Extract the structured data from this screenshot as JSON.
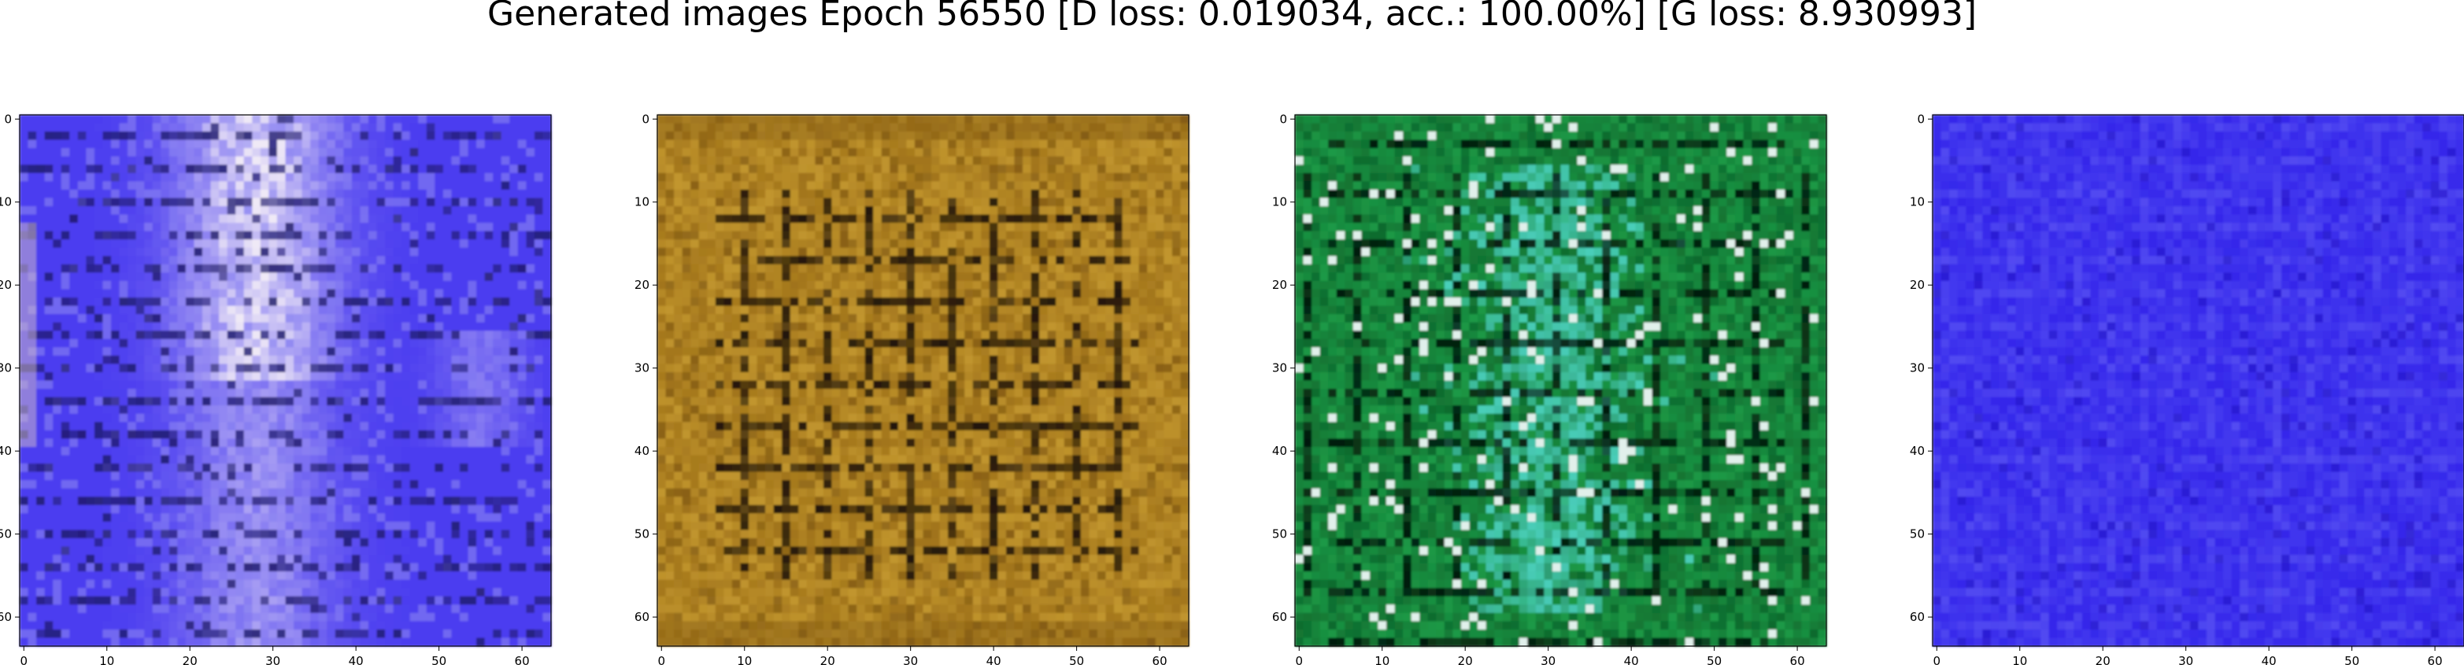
{
  "title": "Generated images Epoch 56550 [D loss: 0.019034, acc.: 100.00%] [G loss: 8.930993]",
  "chart_data": [
    {
      "type": "heatmap",
      "title": "",
      "description": "Generated image sample 1: predominantly blue-violet with a pale white/lavender vertical band near x~25-35 and dark horizontal grid lines",
      "xlabel": "",
      "ylabel": "",
      "xlim": [
        0,
        63
      ],
      "ylim": [
        63,
        0
      ],
      "xticks": [
        0,
        10,
        20,
        30,
        40,
        50,
        60
      ],
      "yticks": [
        0,
        10,
        20,
        30,
        40,
        50,
        60
      ],
      "palette": [
        "#3a2bd9",
        "#4b3df0",
        "#5f55f5",
        "#8a83f2",
        "#c9c4f0",
        "#efe9f6",
        "#1e1a6a"
      ]
    },
    {
      "type": "heatmap",
      "title": "",
      "description": "Generated image sample 2: ochre/golden brown with dark brown and black grid-like pattern",
      "xlabel": "",
      "ylabel": "",
      "xlim": [
        0,
        63
      ],
      "ylim": [
        63,
        0
      ],
      "xticks": [
        0,
        10,
        20,
        30,
        40,
        50,
        60
      ],
      "yticks": [
        0,
        10,
        20,
        30,
        40,
        50,
        60
      ],
      "palette": [
        "#a0731a",
        "#b8861e",
        "#c99b2c",
        "#7b5410",
        "#4a300a",
        "#d8ad3c",
        "#1a1006"
      ]
    },
    {
      "type": "heatmap",
      "title": "",
      "description": "Generated image sample 3: dark green with teal/cyan highlights and black grid lines",
      "xlabel": "",
      "ylabel": "",
      "xlim": [
        0,
        63
      ],
      "ylim": [
        63,
        0
      ],
      "xticks": [
        0,
        10,
        20,
        30,
        40,
        50,
        60
      ],
      "yticks": [
        0,
        10,
        20,
        30,
        40,
        50,
        60
      ],
      "palette": [
        "#0f6b2e",
        "#158a3a",
        "#1fa54c",
        "#2fc08a",
        "#4fd6c8",
        "#0a3a1a",
        "#02140a"
      ]
    },
    {
      "type": "heatmap",
      "title": "",
      "description": "Generated image sample 4: nearly uniform bright blue with faint lighter grid pattern",
      "xlabel": "",
      "ylabel": "",
      "xlim": [
        0,
        63
      ],
      "ylim": [
        63,
        0
      ],
      "xticks": [
        0,
        10,
        20,
        30,
        40,
        50,
        60
      ],
      "yticks": [
        0,
        10,
        20,
        30,
        40,
        50,
        60
      ],
      "palette": [
        "#2a1ee6",
        "#3426ea",
        "#3f33ef",
        "#4d45f2",
        "#5a55f4",
        "#2416c8",
        "#6a66f6"
      ]
    }
  ]
}
